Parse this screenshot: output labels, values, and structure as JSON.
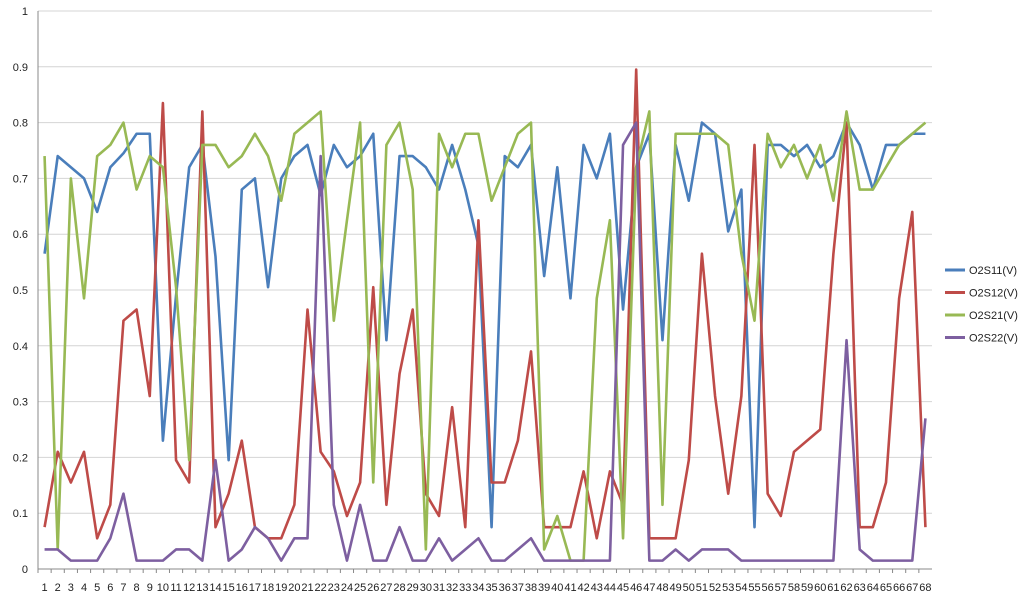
{
  "chart_data": {
    "type": "line",
    "categories": [
      "1",
      "2",
      "3",
      "4",
      "5",
      "6",
      "7",
      "8",
      "9",
      "10",
      "11",
      "12",
      "13",
      "14",
      "15",
      "16",
      "17",
      "18",
      "19",
      "20",
      "21",
      "22",
      "23",
      "24",
      "25",
      "26",
      "27",
      "28",
      "29",
      "30",
      "31",
      "32",
      "33",
      "34",
      "35",
      "36",
      "37",
      "38",
      "39",
      "40",
      "41",
      "42",
      "43",
      "44",
      "45",
      "46",
      "47",
      "48",
      "49",
      "50",
      "51",
      "52",
      "53",
      "54",
      "55",
      "56",
      "57",
      "58",
      "59",
      "60",
      "61",
      "62",
      "63",
      "64",
      "65",
      "66",
      "67",
      "68"
    ],
    "ylim": [
      0,
      1
    ],
    "yticks": [
      "0",
      "0.1",
      "0.2",
      "0.3",
      "0.4",
      "0.5",
      "0.6",
      "0.7",
      "0.8",
      "0.9",
      "1"
    ],
    "grid": true,
    "legend_position": "right",
    "series": [
      {
        "name": "O2S11(V)",
        "color": "#4a7ebb",
        "values": [
          0.565,
          0.74,
          0.72,
          0.7,
          0.64,
          0.72,
          0.745,
          0.78,
          0.78,
          0.23,
          0.49,
          0.72,
          0.76,
          0.56,
          0.195,
          0.68,
          0.7,
          0.505,
          0.7,
          0.74,
          0.76,
          0.67,
          0.76,
          0.72,
          0.74,
          0.78,
          0.41,
          0.74,
          0.74,
          0.72,
          0.68,
          0.76,
          0.68,
          0.58,
          0.075,
          0.74,
          0.72,
          0.76,
          0.525,
          0.72,
          0.485,
          0.76,
          0.7,
          0.78,
          0.465,
          0.72,
          0.78,
          0.41,
          0.76,
          0.66,
          0.8,
          0.78,
          0.605,
          0.68,
          0.075,
          0.76,
          0.76,
          0.74,
          0.76,
          0.72,
          0.74,
          0.8,
          0.76,
          0.68,
          0.76,
          0.76,
          0.78,
          0.78
        ]
      },
      {
        "name": "O2S12(V)",
        "color": "#be4b48",
        "values": [
          0.075,
          0.21,
          0.155,
          0.21,
          0.055,
          0.115,
          0.445,
          0.465,
          0.31,
          0.835,
          0.195,
          0.155,
          0.82,
          0.075,
          0.135,
          0.23,
          0.075,
          0.055,
          0.055,
          0.115,
          0.465,
          0.21,
          0.175,
          0.095,
          0.155,
          0.505,
          0.115,
          0.35,
          0.465,
          0.135,
          0.095,
          0.29,
          0.075,
          0.625,
          0.155,
          0.155,
          0.23,
          0.39,
          0.075,
          0.075,
          0.075,
          0.175,
          0.055,
          0.175,
          0.115,
          0.895,
          0.055,
          0.055,
          0.055,
          0.195,
          0.565,
          0.31,
          0.135,
          0.31,
          0.76,
          0.135,
          0.095,
          0.21,
          0.23,
          0.25,
          0.565,
          0.8,
          0.075,
          0.075,
          0.155,
          0.485,
          0.64,
          0.075
        ]
      },
      {
        "name": "O2S21(V)",
        "color": "#98b954",
        "values": [
          0.74,
          0.035,
          0.7,
          0.485,
          0.74,
          0.76,
          0.8,
          0.68,
          0.74,
          0.72,
          0.505,
          0.195,
          0.76,
          0.76,
          0.72,
          0.74,
          0.78,
          0.74,
          0.66,
          0.78,
          0.8,
          0.82,
          0.445,
          0.625,
          0.8,
          0.155,
          0.76,
          0.8,
          0.68,
          0.035,
          0.78,
          0.72,
          0.78,
          0.78,
          0.66,
          0.72,
          0.78,
          0.8,
          0.035,
          0.095,
          0.015,
          0.015,
          0.485,
          0.625,
          0.055,
          0.72,
          0.82,
          0.115,
          0.78,
          0.78,
          0.78,
          0.78,
          0.76,
          0.565,
          0.445,
          0.78,
          0.72,
          0.76,
          0.7,
          0.76,
          0.66,
          0.82,
          0.68,
          0.68,
          0.72,
          0.76,
          0.78,
          0.8
        ]
      },
      {
        "name": "O2S22(V)",
        "color": "#7d5fa0",
        "values": [
          0.035,
          0.035,
          0.015,
          0.015,
          0.015,
          0.055,
          0.135,
          0.015,
          0.015,
          0.015,
          0.035,
          0.035,
          0.015,
          0.195,
          0.015,
          0.035,
          0.075,
          0.055,
          0.015,
          0.055,
          0.055,
          0.74,
          0.115,
          0.015,
          0.115,
          0.015,
          0.015,
          0.075,
          0.015,
          0.015,
          0.055,
          0.015,
          0.035,
          0.055,
          0.015,
          0.015,
          0.035,
          0.055,
          0.015,
          0.015,
          0.015,
          0.015,
          0.015,
          0.015,
          0.76,
          0.8,
          0.015,
          0.015,
          0.035,
          0.015,
          0.035,
          0.035,
          0.035,
          0.015,
          0.015,
          0.015,
          0.015,
          0.015,
          0.015,
          0.015,
          0.015,
          0.41,
          0.035,
          0.015,
          0.015,
          0.015,
          0.015,
          0.27
        ]
      }
    ]
  }
}
